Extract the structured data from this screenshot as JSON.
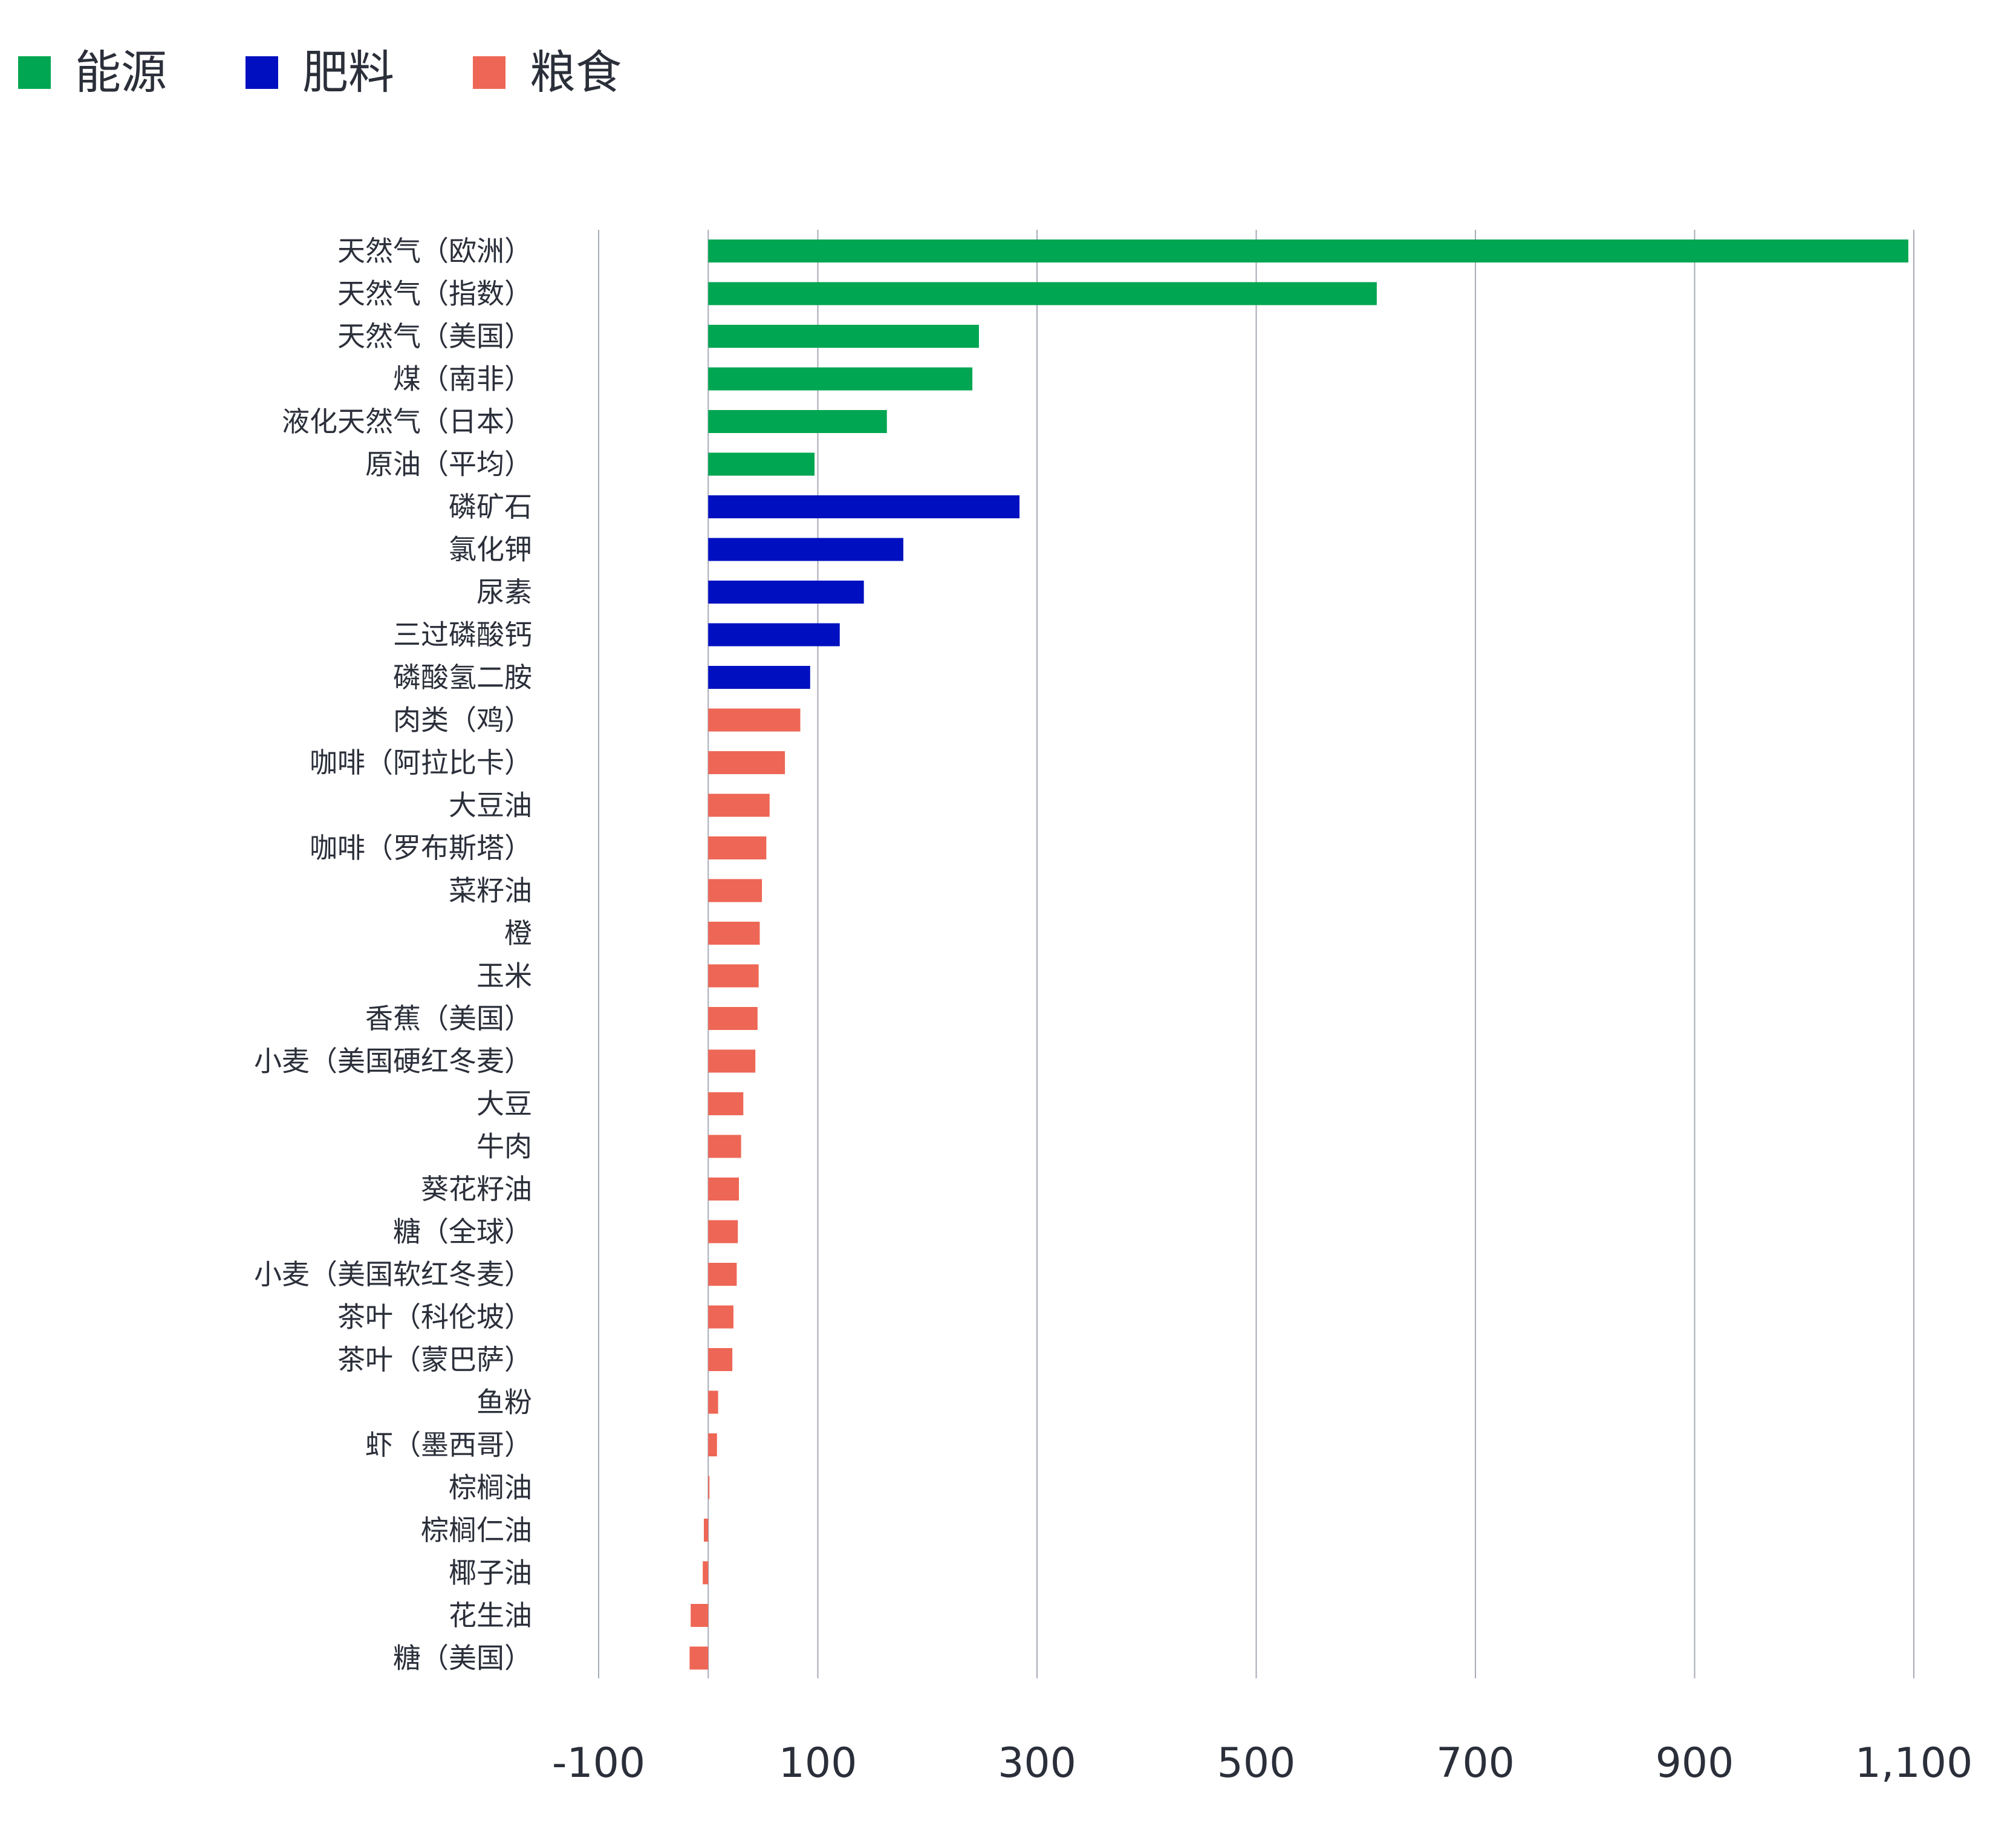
{
  "legend": [
    {
      "label": "能源",
      "color": "#00a651"
    },
    {
      "label": "肥料",
      "color": "#0010c0"
    },
    {
      "label": "粮食",
      "color": "#ee6655"
    }
  ],
  "chart_data": {
    "type": "bar",
    "orientation": "horizontal",
    "title": "",
    "xlabel": "",
    "ylabel": "",
    "xlim": [
      -100,
      1100
    ],
    "xticks": [
      -100,
      100,
      300,
      500,
      700,
      900,
      1100
    ],
    "xtick_labels": [
      "-100",
      "100",
      "300",
      "500",
      "700",
      "900",
      "1,100"
    ],
    "grid": "vertical",
    "legend_position": "top-left",
    "categories": [
      "天然气（欧洲）",
      "天然气（指数）",
      "天然气（美国）",
      "煤（南非）",
      "液化天然气（日本）",
      "原油（平均）",
      "磷矿石",
      "氯化钾",
      "尿素",
      "三过磷酸钙",
      "磷酸氢二胺",
      "肉类（鸡）",
      "咖啡（阿拉比卡）",
      "大豆油",
      "咖啡（罗布斯塔）",
      "菜籽油",
      "橙",
      "玉米",
      "香蕉（美国）",
      "小麦（美国硬红冬麦）",
      "大豆",
      "牛肉",
      "葵花籽油",
      "糖（全球）",
      "小麦（美国软红冬麦）",
      "茶叶（科伦坡）",
      "茶叶（蒙巴萨）",
      "鱼粉",
      "虾（墨西哥）",
      "棕榈油",
      "棕榈仁油",
      "椰子油",
      "花生油",
      "糖（美国）"
    ],
    "values": [
      1095,
      610,
      247,
      241,
      163,
      97,
      284,
      178,
      142,
      120,
      93,
      84,
      70,
      56,
      53,
      49,
      47,
      46,
      45,
      43,
      32,
      30,
      28,
      27,
      26,
      23,
      22,
      9,
      8,
      1,
      -4,
      -5,
      -16,
      -17
    ],
    "groups": [
      "能源",
      "能源",
      "能源",
      "能源",
      "能源",
      "能源",
      "肥料",
      "肥料",
      "肥料",
      "肥料",
      "肥料",
      "粮食",
      "粮食",
      "粮食",
      "粮食",
      "粮食",
      "粮食",
      "粮食",
      "粮食",
      "粮食",
      "粮食",
      "粮食",
      "粮食",
      "粮食",
      "粮食",
      "粮食",
      "粮食",
      "粮食",
      "粮食",
      "粮食",
      "粮食",
      "粮食",
      "粮食",
      "粮食"
    ]
  }
}
